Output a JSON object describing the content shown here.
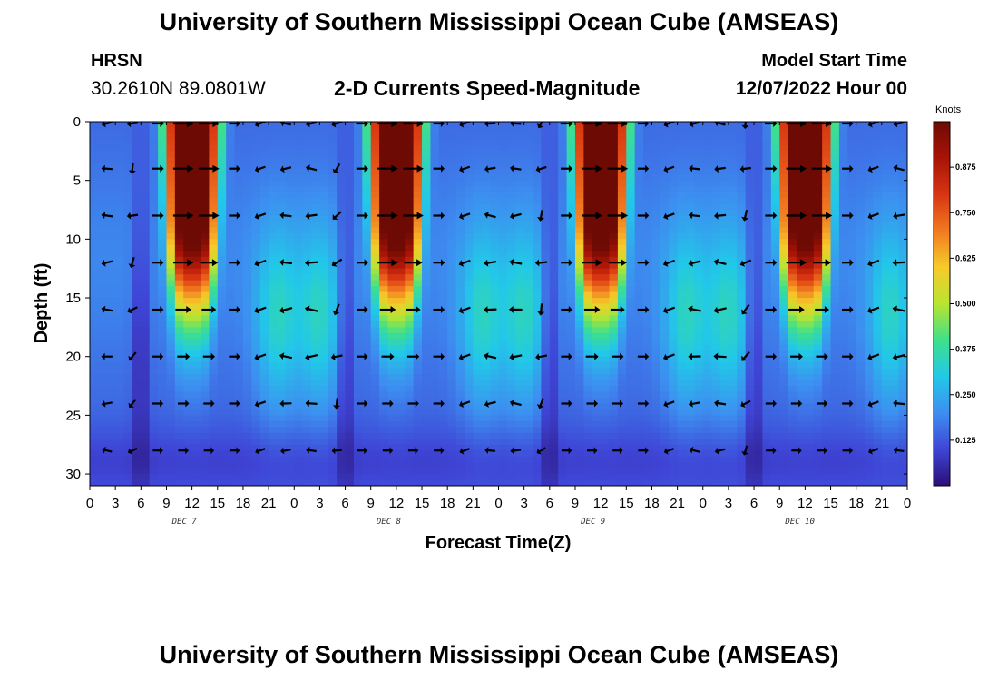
{
  "page": {
    "title": "University of Southern Mississippi Ocean Cube (AMSEAS)",
    "station": "HRSN",
    "coordinates": "30.2610N  89.0801W",
    "subtitle": "2-D Currents Speed-Magnitude",
    "model_start_label": "Model Start Time",
    "model_start_value": "12/07/2022 Hour 00",
    "footer_title": "University of Southern Mississippi Ocean Cube (AMSEAS)"
  },
  "chart_data": {
    "type": "heatmap",
    "title": "2-D Currents Speed-Magnitude",
    "xlabel": "Forecast Time(Z)",
    "ylabel": "Depth (ft)",
    "xlim": [
      0,
      96
    ],
    "ylim": [
      31,
      0
    ],
    "x_ticks": [
      0,
      3,
      6,
      9,
      12,
      15,
      18,
      21,
      24,
      27,
      30,
      33,
      36,
      39,
      42,
      45,
      48,
      51,
      54,
      57,
      60,
      63,
      66,
      69,
      72,
      75,
      78,
      81,
      84,
      87,
      90,
      93,
      96
    ],
    "x_tick_labels": [
      "0",
      "3",
      "6",
      "9",
      "12",
      "15",
      "18",
      "21",
      "0",
      "3",
      "6",
      "9",
      "12",
      "15",
      "18",
      "21",
      "0",
      "3",
      "6",
      "9",
      "12",
      "15",
      "18",
      "21",
      "0",
      "3",
      "6",
      "9",
      "12",
      "15",
      "18",
      "21",
      "0"
    ],
    "y_ticks": [
      0,
      5,
      10,
      15,
      20,
      25,
      30
    ],
    "y_tick_labels": [
      "0",
      "5",
      "10",
      "15",
      "20",
      "25",
      "30"
    ],
    "day_labels": [
      {
        "text": "DEC 7",
        "hour": 12
      },
      {
        "text": "DEC 8",
        "hour": 36
      },
      {
        "text": "DEC 9",
        "hour": 60
      },
      {
        "text": "DEC 10",
        "hour": 84
      }
    ],
    "colorbar": {
      "label": "Knots",
      "range": [
        0,
        1.0
      ],
      "ticks": [
        0.875,
        0.75,
        0.625,
        0.5,
        0.375,
        0.25,
        0.125
      ],
      "tick_labels": [
        "0.875",
        "0.750",
        "0.625",
        "0.500",
        "0.375",
        "0.250",
        "0.125"
      ],
      "colors": [
        "#2a0f74",
        "#3f45d6",
        "#3d8ef0",
        "#22c8e8",
        "#3ee08a",
        "#b8e430",
        "#f7cb2a",
        "#f17a20",
        "#d83512",
        "#a81406",
        "#6e0a04"
      ]
    },
    "speed_pattern": {
      "ebb_peaks_hours": [
        12,
        36,
        60,
        84
      ],
      "peak_speed_surface_knots": 0.9,
      "peak_core_depth_ft": [
        0,
        16
      ],
      "slack_hours": [
        6,
        30,
        54,
        78
      ],
      "secondary_peaks_hours": [
        22,
        27,
        46,
        51,
        70,
        75,
        94
      ]
    },
    "arrow_depths_ft": [
      0,
      4,
      8,
      12,
      16,
      20,
      24,
      28
    ],
    "arrow_hours": [
      2,
      5,
      8,
      11,
      14,
      17,
      20,
      23,
      26,
      29,
      32,
      35,
      38,
      41,
      44,
      47,
      50,
      53,
      56,
      59,
      62,
      65,
      68,
      71,
      74,
      77,
      80,
      83,
      86,
      89,
      92,
      95
    ]
  }
}
